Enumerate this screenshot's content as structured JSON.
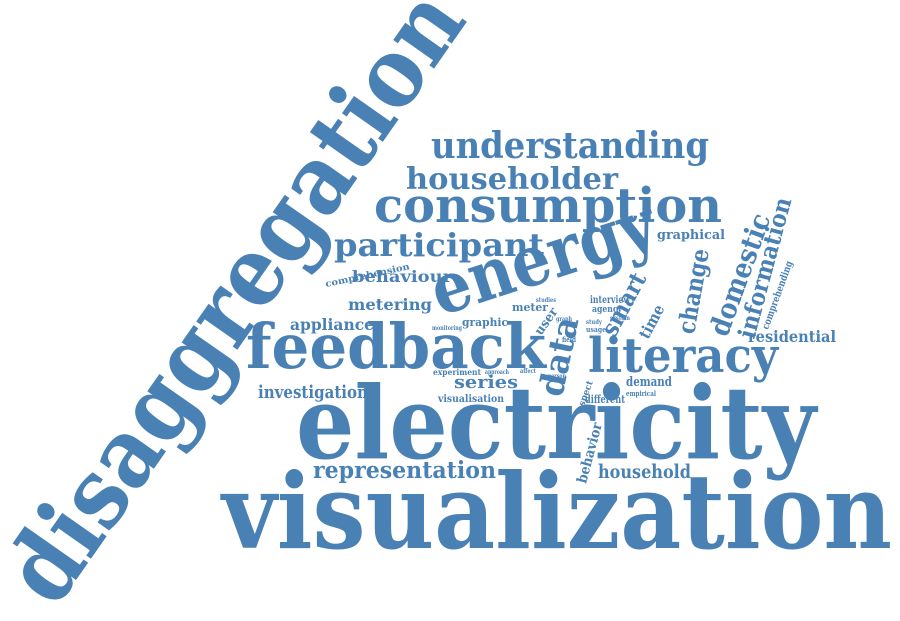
{
  "canvas": {
    "title": "Word cloud",
    "word_color": "#4a81b4",
    "background_color": "#ffffff"
  },
  "words": {
    "disaggregation": "disaggregation",
    "visualization": "visualization",
    "electricity": "electricity",
    "feedback": "feedback",
    "energy": "energy",
    "consumption": "consumption",
    "literacy": "literacy",
    "understanding": "understanding",
    "householder": "householder",
    "participant": "participant",
    "representation": "representation",
    "data": "data",
    "information": "information",
    "domestic": "domestic",
    "change": "change",
    "smart": "smart",
    "time": "time",
    "appliance": "appliance",
    "investigation": "investigation",
    "metering": "metering",
    "behaviour": "behaviour",
    "residential": "residential",
    "household": "household",
    "series": "series",
    "graphical": "graphical",
    "demand": "demand",
    "behavior": "behavior",
    "different": "different",
    "visualisation": "visualisation",
    "experiment": "experiment",
    "graphic": "graphic",
    "meter": "meter",
    "user": "user",
    "comprehending": "comprehending",
    "comprehension": "comprehension",
    "interview": "interview",
    "agency": "agency",
    "system": "system",
    "empirical": "empirical",
    "aspect": "aspect",
    "approach": "approach",
    "affect": "affect",
    "monitoring": "monitoring",
    "study": "study",
    "usage": "usage",
    "graph": "graph",
    "studies": "studies",
    "field": "field",
    "person": "person"
  }
}
